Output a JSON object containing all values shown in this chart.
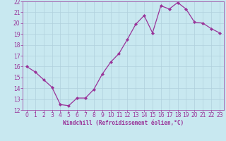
{
  "x": [
    0,
    1,
    2,
    3,
    4,
    5,
    6,
    7,
    8,
    9,
    10,
    11,
    12,
    13,
    14,
    15,
    16,
    17,
    18,
    19,
    20,
    21,
    22,
    23
  ],
  "y": [
    16.0,
    15.5,
    14.8,
    14.1,
    12.5,
    12.4,
    13.1,
    13.1,
    13.9,
    15.3,
    16.4,
    17.2,
    18.5,
    19.9,
    20.7,
    19.1,
    21.6,
    21.3,
    21.9,
    21.3,
    20.1,
    20.0,
    19.5,
    19.1
  ],
  "line_color": "#993399",
  "marker": "D",
  "marker_size": 2.0,
  "bg_color": "#c8e8f0",
  "grid_color": "#b0d0dc",
  "xlabel": "Windchill (Refroidissement éolien,°C)",
  "xlabel_color": "#993399",
  "tick_color": "#993399",
  "ylim": [
    12,
    22
  ],
  "xlim": [
    -0.5,
    23.5
  ],
  "yticks": [
    12,
    13,
    14,
    15,
    16,
    17,
    18,
    19,
    20,
    21,
    22
  ],
  "xticks": [
    0,
    1,
    2,
    3,
    4,
    5,
    6,
    7,
    8,
    9,
    10,
    11,
    12,
    13,
    14,
    15,
    16,
    17,
    18,
    19,
    20,
    21,
    22,
    23
  ],
  "tick_fontsize": 5.5,
  "xlabel_fontsize": 5.5,
  "linewidth": 0.9
}
